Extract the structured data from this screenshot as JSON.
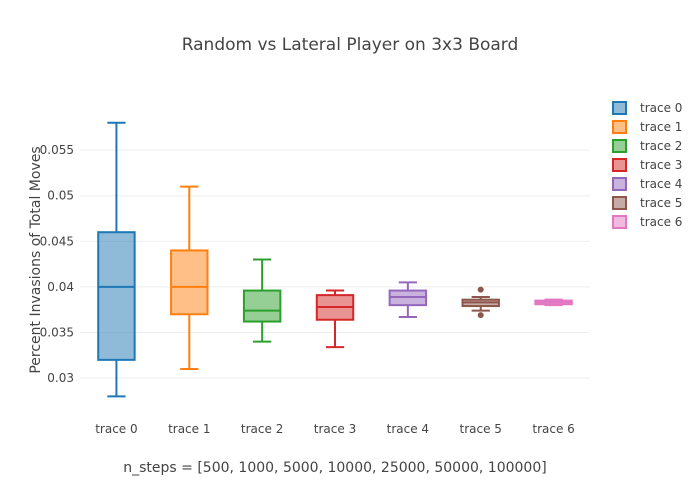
{
  "chart_data": {
    "type": "box",
    "title": "Random vs Lateral Player on 3x3 Board",
    "xlabel": "n_steps = [500, 1000, 5000, 10000, 25000, 50000, 100000]",
    "ylabel": "Percent Invasions of Total Moves",
    "ylim": [
      0.0265,
      0.0605
    ],
    "yticks": [
      0.03,
      0.035,
      0.04,
      0.045,
      0.05,
      0.055
    ],
    "ytick_labels": [
      "0.03",
      "0.035",
      "0.04",
      "0.045",
      "0.05",
      "0.055"
    ],
    "grid": true,
    "legend_position": "top-right",
    "series": [
      {
        "name": "trace 0",
        "color": "#1f77b4",
        "min": 0.028,
        "q1": 0.032,
        "median": 0.04,
        "q3": 0.046,
        "max": 0.058,
        "outliers": []
      },
      {
        "name": "trace 1",
        "color": "#ff7f0e",
        "min": 0.031,
        "q1": 0.037,
        "median": 0.04,
        "q3": 0.044,
        "max": 0.051,
        "outliers": []
      },
      {
        "name": "trace 2",
        "color": "#2ca02c",
        "min": 0.034,
        "q1": 0.0362,
        "median": 0.0374,
        "q3": 0.0396,
        "max": 0.043,
        "outliers": []
      },
      {
        "name": "trace 3",
        "color": "#d62728",
        "min": 0.0334,
        "q1": 0.0364,
        "median": 0.0378,
        "q3": 0.0391,
        "max": 0.0396,
        "outliers": []
      },
      {
        "name": "trace 4",
        "color": "#9467bd",
        "min": 0.0367,
        "q1": 0.038,
        "median": 0.0389,
        "q3": 0.0396,
        "max": 0.0405,
        "outliers": []
      },
      {
        "name": "trace 5",
        "color": "#8c564b",
        "min": 0.0374,
        "q1": 0.0379,
        "median": 0.0383,
        "q3": 0.0386,
        "max": 0.0389,
        "outliers": [
          0.0397,
          0.0369
        ]
      },
      {
        "name": "trace 6",
        "color": "#e377c2",
        "min": 0.038,
        "q1": 0.0381,
        "median": 0.0383,
        "q3": 0.0385,
        "max": 0.0386,
        "outliers": []
      }
    ]
  }
}
